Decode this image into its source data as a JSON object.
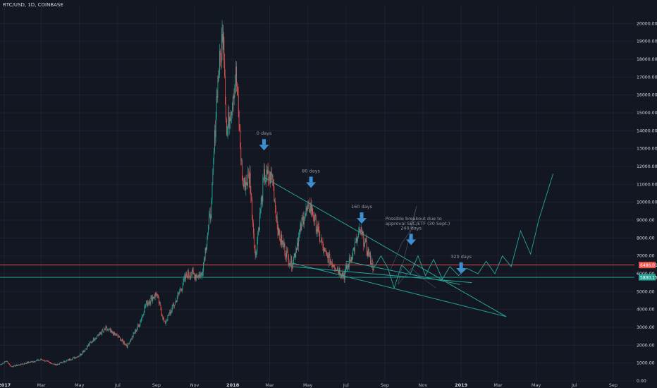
{
  "header": {
    "symbol": "BTC/USD, 1D, COINBASE"
  },
  "colors": {
    "background": "#131722",
    "up": "#26a69a",
    "down": "#ef5350",
    "trendline": "#26a69a",
    "arrow": "#3d8fd0",
    "support_line": "#26a69a",
    "resistance_line": "#ef5350"
  },
  "annotations": {
    "arrows": [
      {
        "label": "0 days",
        "date": "2018-02-20",
        "price": 12900
      },
      {
        "label": "80 days",
        "date": "2018-05-06",
        "price": 10800
      },
      {
        "label": "160 days",
        "date": "2018-07-26",
        "price": 8800
      },
      {
        "label": "240 days",
        "date": "2018-10-13",
        "price": 7600
      },
      {
        "label": "320 days",
        "date": "2019-01-01",
        "price": 6000
      }
    ],
    "breakout_note": [
      "Possible breakout due to",
      "approval SEC/ETF (30 Sept.)"
    ]
  },
  "price_labels": {
    "current": "6486.01",
    "support": "5800.15"
  },
  "chart_data": {
    "type": "candlestick",
    "title": "BTC/USD, 1D, COINBASE",
    "y_axis": {
      "position": "right",
      "ylim": [
        0,
        21000
      ],
      "ticks": [
        "0.00",
        "1000.00",
        "2000.00",
        "3000.00",
        "4000.00",
        "5000.00",
        "6000.00",
        "7000.00",
        "8000.00",
        "9000.00",
        "10000.00",
        "11000.00",
        "12000.00",
        "13000.00",
        "14000.00",
        "15000.00",
        "16000.00",
        "17000.00",
        "18000.00",
        "19000.00",
        "20000.00"
      ]
    },
    "x_axis": {
      "range": [
        "2016-12-25",
        "2019-10-05"
      ],
      "ticks": [
        {
          "label": "2017",
          "date": "2017-01-01",
          "bold": true
        },
        {
          "label": "Mar",
          "date": "2017-03-01"
        },
        {
          "label": "May",
          "date": "2017-05-01"
        },
        {
          "label": "Jul",
          "date": "2017-07-01"
        },
        {
          "label": "Sep",
          "date": "2017-09-01"
        },
        {
          "label": "Nov",
          "date": "2017-11-01"
        },
        {
          "label": "2018",
          "date": "2018-01-01",
          "bold": true
        },
        {
          "label": "Mar",
          "date": "2018-03-01"
        },
        {
          "label": "May",
          "date": "2018-05-01"
        },
        {
          "label": "Jul",
          "date": "2018-07-01"
        },
        {
          "label": "Sep",
          "date": "2018-09-01"
        },
        {
          "label": "Nov",
          "date": "2018-11-01"
        },
        {
          "label": "2019",
          "date": "2019-01-01",
          "bold": true
        },
        {
          "label": "Mar",
          "date": "2019-03-01"
        },
        {
          "label": "May",
          "date": "2019-05-01"
        },
        {
          "label": "Jul",
          "date": "2019-07-01"
        },
        {
          "label": "Sep",
          "date": "2019-09-01"
        }
      ]
    },
    "horizontal_lines": [
      {
        "name": "current price",
        "value": 6486.01,
        "color": "#ef5350"
      },
      {
        "name": "support",
        "value": 5800.15,
        "color": "#26a69a"
      }
    ],
    "close_series": [
      [
        "2016-12-25",
        900
      ],
      [
        "2017-01-04",
        1120
      ],
      [
        "2017-01-12",
        800
      ],
      [
        "2017-02-01",
        970
      ],
      [
        "2017-03-01",
        1200
      ],
      [
        "2017-03-24",
        900
      ],
      [
        "2017-04-15",
        1200
      ],
      [
        "2017-05-01",
        1420
      ],
      [
        "2017-05-25",
        2400
      ],
      [
        "2017-06-12",
        2900
      ],
      [
        "2017-07-01",
        2500
      ],
      [
        "2017-07-16",
        1950
      ],
      [
        "2017-08-05",
        3200
      ],
      [
        "2017-08-15",
        4300
      ],
      [
        "2017-09-01",
        4900
      ],
      [
        "2017-09-14",
        3200
      ],
      [
        "2017-10-01",
        4400
      ],
      [
        "2017-10-20",
        6000
      ],
      [
        "2017-11-12",
        5900
      ],
      [
        "2017-11-28",
        9800
      ],
      [
        "2017-12-07",
        16500
      ],
      [
        "2017-12-17",
        19700
      ],
      [
        "2017-12-22",
        13800
      ],
      [
        "2018-01-06",
        17100
      ],
      [
        "2018-01-17",
        10900
      ],
      [
        "2018-01-28",
        11400
      ],
      [
        "2018-02-06",
        6900
      ],
      [
        "2018-02-20",
        11400
      ],
      [
        "2018-03-05",
        11400
      ],
      [
        "2018-03-15",
        8200
      ],
      [
        "2018-04-01",
        6800
      ],
      [
        "2018-04-06",
        6600
      ],
      [
        "2018-04-25",
        9300
      ],
      [
        "2018-05-05",
        9800
      ],
      [
        "2018-05-28",
        7100
      ],
      [
        "2018-06-12",
        6500
      ],
      [
        "2018-06-28",
        5900
      ],
      [
        "2018-07-24",
        8400
      ],
      [
        "2018-08-01",
        7600
      ],
      [
        "2018-08-14",
        6300
      ]
    ],
    "projection_path": [
      [
        "2018-08-14",
        6300
      ],
      [
        "2018-08-26",
        7000
      ],
      [
        "2018-09-06",
        6300
      ],
      [
        "2018-09-16",
        5200
      ],
      [
        "2018-09-28",
        6500
      ],
      [
        "2018-10-12",
        6000
      ],
      [
        "2018-10-24",
        7000
      ],
      [
        "2018-11-05",
        5900
      ],
      [
        "2018-11-18",
        6800
      ],
      [
        "2018-12-02",
        5700
      ],
      [
        "2018-12-14",
        6400
      ],
      [
        "2018-12-28",
        5900
      ],
      [
        "2019-01-10",
        6300
      ],
      [
        "2019-01-28",
        6000
      ],
      [
        "2019-02-10",
        6700
      ],
      [
        "2019-02-24",
        6000
      ],
      [
        "2019-03-08",
        7000
      ],
      [
        "2019-03-22",
        6400
      ],
      [
        "2019-04-06",
        8400
      ],
      [
        "2019-04-22",
        7100
      ],
      [
        "2019-05-05",
        9000
      ],
      [
        "2019-05-28",
        11600
      ]
    ],
    "faint_projection": [
      [
        "2018-09-10",
        6200
      ],
      [
        "2018-09-28",
        7700
      ],
      [
        "2018-10-10",
        8300
      ],
      [
        "2018-10-22",
        9800
      ],
      [
        "2018-09-22",
        5400
      ],
      [
        "2018-10-14",
        6300
      ],
      [
        "2018-11-02",
        5700
      ],
      [
        "2018-11-22",
        5200
      ]
    ],
    "trendlines": [
      {
        "name": "descending resistance",
        "from": [
          "2018-02-20",
          11400
        ],
        "to": [
          "2019-03-14",
          3600
        ]
      },
      {
        "name": "ascending support",
        "from": [
          "2018-04-06",
          6600
        ],
        "to": [
          "2019-03-14",
          3600
        ]
      },
      {
        "name": "lower channel",
        "from": [
          "2018-04-06",
          6400
        ],
        "to": [
          "2019-01-18",
          5500
        ]
      },
      {
        "name": "mid channel",
        "from": [
          "2018-07-01",
          6700
        ],
        "to": [
          "2018-12-30",
          5400
        ]
      }
    ]
  }
}
